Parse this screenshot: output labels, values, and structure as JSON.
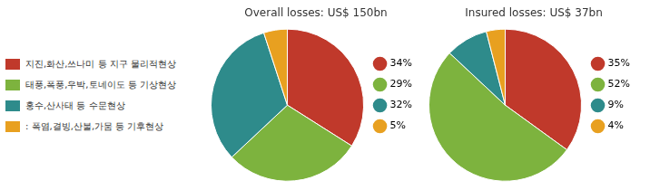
{
  "chart_data": [
    {
      "type": "pie",
      "title": "Overall losses: US$ 150bn",
      "categories": [
        "지진,화산,쓰나미 등 지구 물리적현상",
        "태풍,폭풍,우박,토네이도 등 기상현상",
        "홍수,산사태 등 수문현상",
        ": 폭염,결빙,산불,가뭄 등 기후현상"
      ],
      "values": [
        34,
        29,
        32,
        5
      ],
      "value_labels": [
        "34%",
        "29%",
        "32%",
        "5%"
      ],
      "colors": [
        "#c0392b",
        "#7db33e",
        "#2e8b8b",
        "#e8a020"
      ],
      "legend": "right"
    },
    {
      "type": "pie",
      "title": "Insured losses: US$ 37bn",
      "categories": [
        "지진,화산,쓰나미 등 지구 물리적현상",
        "태풍,폭풍,우박,토네이도 등 기상현상",
        "홍수,산사태 등 수문현상",
        ": 폭염,결빙,산불,가뭄 등 기후현상"
      ],
      "values": [
        35,
        52,
        9,
        4
      ],
      "value_labels": [
        "35%",
        "52%",
        "9%",
        "4%"
      ],
      "colors": [
        "#c0392b",
        "#7db33e",
        "#2e8b8b",
        "#e8a020"
      ],
      "legend": "right"
    }
  ]
}
